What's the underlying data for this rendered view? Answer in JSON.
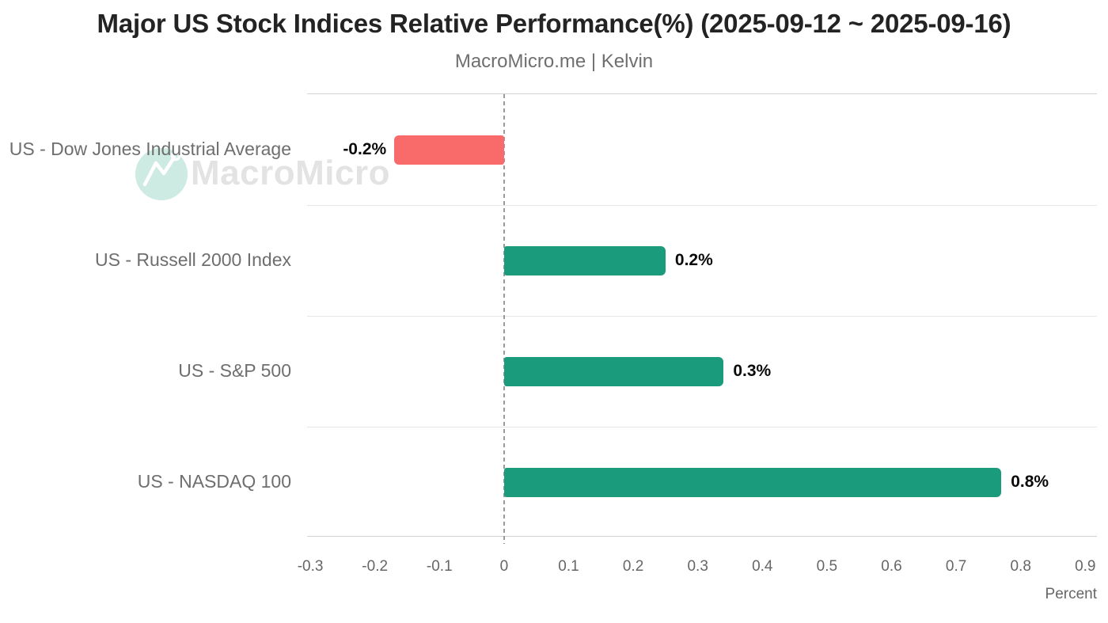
{
  "header": {
    "title": "Major US Stock Indices Relative Performance(%) (2025-09-12 ~ 2025-09-16)",
    "subtitle": "MacroMicro.me | Kelvin"
  },
  "watermark": {
    "text": "MacroMicro",
    "logo_icon": "macromicro-logo",
    "circle_color": "#cdebe2",
    "mark_color": "#ffffff",
    "text_color": "#e3e3e3"
  },
  "chart_data": {
    "type": "bar",
    "orientation": "horizontal",
    "title": "Major US Stock Indices Relative Performance(%) (2025-09-12 ~ 2025-09-16)",
    "subtitle": "MacroMicro.me | Kelvin",
    "categories": [
      "US - Dow Jones Industrial Average",
      "US - Russell 2000 Index",
      "US - S&P 500",
      "US - NASDAQ 100"
    ],
    "values": [
      -0.17,
      0.25,
      0.34,
      0.77
    ],
    "value_labels": [
      "-0.2%",
      "0.2%",
      "0.3%",
      "0.8%"
    ],
    "bar_colors": [
      "#f96b6b",
      "#1a9b7c",
      "#1a9b7c",
      "#1a9b7c"
    ],
    "negative_color": "#f96b6b",
    "positive_color": "#1a9b7c",
    "xlabel": "Percent",
    "xtick_values": [
      -0.3,
      -0.2,
      -0.1,
      0,
      0.1,
      0.2,
      0.3,
      0.4,
      0.5,
      0.6,
      0.7,
      0.8,
      0.9
    ],
    "xtick_labels": [
      "-0.3",
      "-0.2",
      "-0.1",
      "0",
      "0.1",
      "0.2",
      "0.3",
      "0.4",
      "0.5",
      "0.6",
      "0.7",
      "0.8",
      "0.9"
    ],
    "xlim": [
      -0.305,
      0.918
    ],
    "zero_line": {
      "style": "dashed",
      "color": "#9a9a9a"
    },
    "grid": {
      "row_separators": true,
      "color": "#e6e6e6"
    },
    "legend": null
  }
}
